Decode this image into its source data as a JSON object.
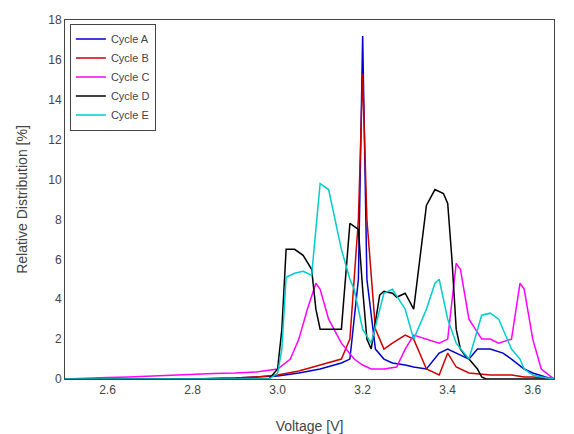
{
  "chart_data": {
    "type": "line",
    "xlabel": "Voltage [V]",
    "ylabel": "Relative Distribution [%]",
    "xlim": [
      2.5,
      3.65
    ],
    "ylim": [
      0,
      18
    ],
    "xticks": [
      2.6,
      2.8,
      {
        "value": 3.0,
        "label": "3.0"
      },
      3.2,
      3.4,
      3.6
    ],
    "yticks": [
      0,
      2,
      4,
      6,
      8,
      10,
      12,
      14,
      16,
      18
    ],
    "grid": false,
    "legend": "upper left",
    "series": [
      {
        "name": "Cycle A",
        "color": "#0000cc",
        "x": [
          2.5,
          2.55,
          2.6,
          2.7,
          2.8,
          2.9,
          2.95,
          3.0,
          3.05,
          3.1,
          3.15,
          3.17,
          3.19,
          3.2,
          3.21,
          3.23,
          3.25,
          3.27,
          3.3,
          3.32,
          3.35,
          3.37,
          3.38,
          3.4,
          3.42,
          3.45,
          3.47,
          3.5,
          3.53,
          3.55,
          3.58,
          3.6,
          3.63,
          3.65
        ],
        "values": [
          0.0,
          0.0,
          0.0,
          0.0,
          0.0,
          0.05,
          0.1,
          0.15,
          0.3,
          0.5,
          0.8,
          1.0,
          5.0,
          17.2,
          5.0,
          1.5,
          1.0,
          0.8,
          0.7,
          0.6,
          0.5,
          1.0,
          1.3,
          1.5,
          1.3,
          1.0,
          1.5,
          1.5,
          1.3,
          1.0,
          0.5,
          0.3,
          0.1,
          0.0
        ]
      },
      {
        "name": "Cycle B",
        "color": "#cc0000",
        "x": [
          2.5,
          2.55,
          2.6,
          2.7,
          2.8,
          2.9,
          2.95,
          3.0,
          3.05,
          3.1,
          3.15,
          3.17,
          3.19,
          3.2,
          3.21,
          3.23,
          3.25,
          3.27,
          3.3,
          3.32,
          3.35,
          3.38,
          3.4,
          3.42,
          3.45,
          3.5,
          3.55,
          3.58,
          3.6,
          3.63,
          3.65
        ],
        "values": [
          0.0,
          0.0,
          0.0,
          0.0,
          0.0,
          0.05,
          0.1,
          0.2,
          0.4,
          0.7,
          1.0,
          2.0,
          8.0,
          15.3,
          8.0,
          2.5,
          1.5,
          1.8,
          2.2,
          2.0,
          0.5,
          0.2,
          1.3,
          0.6,
          0.3,
          0.2,
          0.2,
          0.1,
          0.1,
          0.05,
          0.0
        ]
      },
      {
        "name": "Cycle C",
        "color": "#ff00ff",
        "x": [
          2.5,
          2.55,
          2.6,
          2.65,
          2.7,
          2.75,
          2.8,
          2.85,
          2.9,
          2.95,
          3.0,
          3.03,
          3.05,
          3.07,
          3.09,
          3.1,
          3.12,
          3.15,
          3.18,
          3.2,
          3.22,
          3.25,
          3.28,
          3.3,
          3.32,
          3.35,
          3.38,
          3.4,
          3.42,
          3.43,
          3.45,
          3.48,
          3.5,
          3.52,
          3.55,
          3.57,
          3.58,
          3.6,
          3.62,
          3.65
        ],
        "values": [
          0.0,
          0.05,
          0.07,
          0.1,
          0.15,
          0.2,
          0.25,
          0.28,
          0.3,
          0.35,
          0.5,
          1.0,
          2.0,
          3.5,
          4.8,
          4.5,
          3.0,
          1.8,
          1.0,
          0.7,
          0.5,
          0.5,
          0.6,
          1.5,
          2.2,
          2.0,
          1.8,
          2.0,
          5.8,
          5.5,
          3.0,
          2.0,
          2.0,
          1.8,
          2.0,
          4.8,
          4.5,
          2.0,
          0.5,
          0.0
        ]
      },
      {
        "name": "Cycle D",
        "color": "#000000",
        "x": [
          2.5,
          2.6,
          2.7,
          2.8,
          2.9,
          2.98,
          3.0,
          3.01,
          3.02,
          3.04,
          3.06,
          3.08,
          3.09,
          3.1,
          3.12,
          3.15,
          3.17,
          3.19,
          3.2,
          3.21,
          3.22,
          3.24,
          3.25,
          3.27,
          3.28,
          3.3,
          3.32,
          3.35,
          3.37,
          3.39,
          3.4,
          3.41,
          3.42,
          3.43,
          3.44,
          3.45,
          3.47,
          3.48,
          3.49,
          3.5,
          3.55,
          3.6,
          3.65
        ],
        "values": [
          0.0,
          0.0,
          0.0,
          0.0,
          0.0,
          0.0,
          0.5,
          2.5,
          6.5,
          6.5,
          6.2,
          5.5,
          3.5,
          2.5,
          2.5,
          2.5,
          7.8,
          7.5,
          4.5,
          2.0,
          1.5,
          4.2,
          4.4,
          4.3,
          4.1,
          4.3,
          3.5,
          8.7,
          9.5,
          9.3,
          8.8,
          6.0,
          2.5,
          1.5,
          1.2,
          1.0,
          0.5,
          0.1,
          0.0,
          0.0,
          0.0,
          0.0,
          0.0
        ]
      },
      {
        "name": "Cycle E",
        "color": "#00cccc",
        "x": [
          2.5,
          2.6,
          2.7,
          2.8,
          2.9,
          2.98,
          3.0,
          3.01,
          3.02,
          3.04,
          3.06,
          3.08,
          3.1,
          3.12,
          3.15,
          3.17,
          3.18,
          3.19,
          3.2,
          3.22,
          3.25,
          3.27,
          3.3,
          3.32,
          3.35,
          3.37,
          3.38,
          3.4,
          3.42,
          3.45,
          3.48,
          3.5,
          3.52,
          3.55,
          3.57,
          3.58,
          3.6,
          3.62,
          3.65
        ],
        "values": [
          0.0,
          0.0,
          0.0,
          0.0,
          0.0,
          0.0,
          0.3,
          1.5,
          5.1,
          5.3,
          5.4,
          5.2,
          9.8,
          9.5,
          6.5,
          5.0,
          4.5,
          3.5,
          2.5,
          1.8,
          4.3,
          4.5,
          3.5,
          2.0,
          3.5,
          4.8,
          5.0,
          3.0,
          1.8,
          1.0,
          3.2,
          3.3,
          3.0,
          1.5,
          1.0,
          0.5,
          0.2,
          0.1,
          0.0
        ]
      }
    ]
  }
}
